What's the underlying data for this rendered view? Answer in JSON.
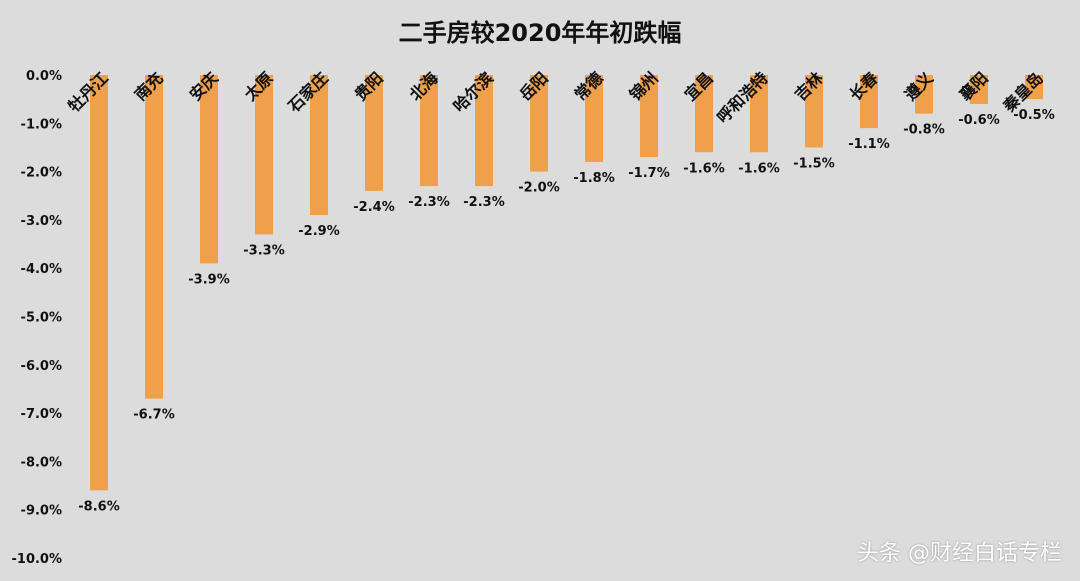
{
  "watermark": "头条 @财经白话专栏",
  "colors": {
    "bar": "#F0A04B",
    "background": "#DCDCDC",
    "text": "#111111"
  },
  "chart_data": {
    "type": "bar",
    "title": "二手房较2020年年初跌幅",
    "xlabel": "",
    "ylabel": "",
    "ylim": [
      -10.0,
      0.0
    ],
    "yticks": [
      "0.0%",
      "-1.0%",
      "-2.0%",
      "-3.0%",
      "-4.0%",
      "-5.0%",
      "-6.0%",
      "-7.0%",
      "-8.0%",
      "-9.0%",
      "-10.0%"
    ],
    "grid": false,
    "categories": [
      "牡丹江",
      "南充",
      "安庆",
      "太原",
      "石家庄",
      "贵阳",
      "北海",
      "哈尔滨",
      "岳阳",
      "常德",
      "锦州",
      "宜昌",
      "呼和浩特",
      "吉林",
      "长春",
      "遵义",
      "襄阳",
      "秦皇岛"
    ],
    "values": [
      -8.6,
      -6.7,
      -3.9,
      -3.3,
      -2.9,
      -2.4,
      -2.3,
      -2.3,
      -2.0,
      -1.8,
      -1.7,
      -1.6,
      -1.6,
      -1.5,
      -1.1,
      -0.8,
      -0.6,
      -0.5
    ],
    "labels": [
      "-8.6%",
      "-6.7%",
      "-3.9%",
      "-3.3%",
      "-2.9%",
      "-2.4%",
      "-2.3%",
      "-2.3%",
      "-2.0%",
      "-1.8%",
      "-1.7%",
      "-1.6%",
      "-1.6%",
      "-1.5%",
      "-1.1%",
      "-0.8%",
      "-0.6%",
      "-0.5%"
    ]
  }
}
